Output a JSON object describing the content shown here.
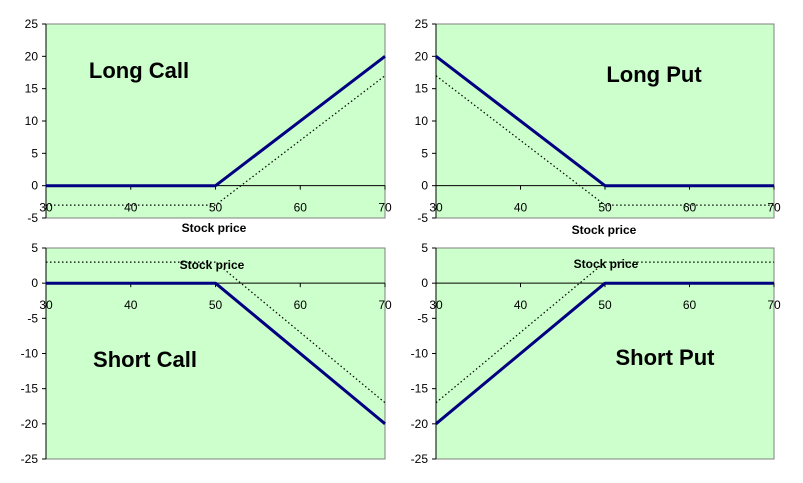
{
  "chart_data": [
    {
      "type": "line",
      "title": "Long Call",
      "xlabel": "Stock price",
      "xlim": [
        30,
        70
      ],
      "ylim": [
        -5,
        25
      ],
      "xticks": [
        30,
        40,
        50,
        60,
        70
      ],
      "yticks": [
        -5,
        0,
        5,
        10,
        15,
        20,
        25
      ],
      "series": [
        {
          "style": "solid",
          "color": "#000080",
          "x": [
            30,
            50,
            70
          ],
          "y": [
            0,
            0,
            20
          ]
        },
        {
          "style": "dotted",
          "color": "#000000",
          "x": [
            30,
            50,
            70
          ],
          "y": [
            -3,
            -3,
            17
          ]
        }
      ]
    },
    {
      "type": "line",
      "title": "Long Put",
      "xlabel": "Stock price",
      "xlim": [
        30,
        70
      ],
      "ylim": [
        -5,
        25
      ],
      "xticks": [
        30,
        40,
        50,
        60,
        70
      ],
      "yticks": [
        -5,
        0,
        5,
        10,
        15,
        20,
        25
      ],
      "series": [
        {
          "style": "solid",
          "color": "#000080",
          "x": [
            30,
            50,
            70
          ],
          "y": [
            20,
            0,
            0
          ]
        },
        {
          "style": "dotted",
          "color": "#000000",
          "x": [
            30,
            50,
            70
          ],
          "y": [
            17,
            -3,
            -3
          ]
        }
      ]
    },
    {
      "type": "line",
      "title": "Short Call",
      "xlabel": "Stock price",
      "xlim": [
        30,
        70
      ],
      "ylim": [
        -25,
        5
      ],
      "xticks": [
        30,
        40,
        50,
        60,
        70
      ],
      "yticks": [
        -25,
        -20,
        -15,
        -10,
        -5,
        0,
        5
      ],
      "series": [
        {
          "style": "solid",
          "color": "#000080",
          "x": [
            30,
            50,
            70
          ],
          "y": [
            0,
            0,
            -20
          ]
        },
        {
          "style": "dotted",
          "color": "#000000",
          "x": [
            30,
            50,
            70
          ],
          "y": [
            3,
            3,
            -17
          ]
        }
      ]
    },
    {
      "type": "line",
      "title": "Short Put",
      "xlabel": "Stock price",
      "xlim": [
        30,
        70
      ],
      "ylim": [
        -25,
        5
      ],
      "xticks": [
        30,
        40,
        50,
        60,
        70
      ],
      "yticks": [
        -25,
        -20,
        -15,
        -10,
        -5,
        0,
        5
      ],
      "series": [
        {
          "style": "solid",
          "color": "#000080",
          "x": [
            30,
            50,
            70
          ],
          "y": [
            -20,
            0,
            0
          ]
        },
        {
          "style": "dotted",
          "color": "#000000",
          "x": [
            30,
            50,
            70
          ],
          "y": [
            -17,
            3,
            3
          ]
        }
      ]
    }
  ],
  "colors": {
    "plot_background": "#ccffcc",
    "payoff_line": "#000080",
    "profit_line": "#000000"
  }
}
